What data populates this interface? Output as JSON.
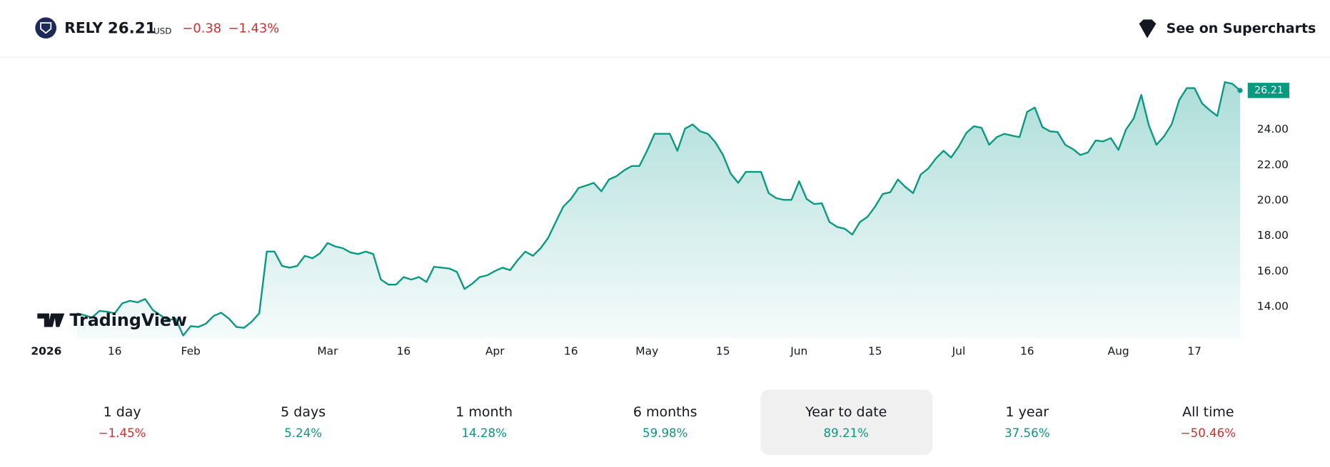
{
  "header": {
    "symbol": "RELY",
    "price": "26.21",
    "currency": "USD",
    "change": "−0.38",
    "change_percent": "−1.43%",
    "change_color": "#d32f2f",
    "button": "See on Supercharts",
    "brand": "TradingView"
  },
  "chart_data": {
    "type": "area",
    "color": "#089981",
    "values": [
      13.62,
      13.52,
      13.38,
      13.76,
      13.71,
      13.62,
      14.19,
      14.33,
      14.24,
      14.43,
      13.81,
      13.52,
      13.23,
      13.33,
      12.37,
      12.9,
      12.85,
      13.04,
      13.47,
      13.66,
      13.33,
      12.85,
      12.8,
      13.14,
      13.62,
      17.11,
      17.11,
      16.3,
      16.2,
      16.3,
      16.87,
      16.73,
      17.01,
      17.59,
      17.4,
      17.3,
      17.06,
      16.97,
      17.11,
      16.97,
      15.53,
      15.24,
      15.24,
      15.67,
      15.53,
      15.67,
      15.39,
      16.25,
      16.2,
      16.15,
      15.96,
      15.0,
      15.29,
      15.67,
      15.77,
      16.01,
      16.2,
      16.06,
      16.63,
      17.11,
      16.87,
      17.3,
      17.88,
      18.78,
      19.65,
      20.08,
      20.7,
      20.84,
      20.99,
      20.51,
      21.18,
      21.37,
      21.7,
      21.94,
      21.94,
      22.8,
      23.76,
      23.76,
      23.76,
      22.8,
      24.05,
      24.29,
      23.9,
      23.76,
      23.28,
      22.56,
      21.51,
      20.99,
      21.61,
      21.61,
      21.61,
      20.41,
      20.12,
      20.03,
      20.03,
      21.08,
      20.08,
      19.79,
      19.84,
      18.78,
      18.5,
      18.4,
      18.07,
      18.78,
      19.07,
      19.65,
      20.36,
      20.46,
      21.18,
      20.75,
      20.41,
      21.46,
      21.8,
      22.37,
      22.8,
      22.42,
      23.04,
      23.81,
      24.19,
      24.1,
      23.14,
      23.57,
      23.76,
      23.66,
      23.57,
      25.0,
      25.24,
      24.14,
      23.9,
      23.86,
      23.14,
      22.9,
      22.56,
      22.71,
      23.38,
      23.33,
      23.52,
      22.85,
      24.0,
      24.62,
      25.96,
      24.24,
      23.14,
      23.62,
      24.29,
      25.67,
      26.34,
      26.34,
      25.48,
      25.1,
      24.77,
      26.68,
      26.58,
      26.21
    ],
    "xlim": [
      -5.4,
      153
    ],
    "xticks": [
      {
        "value": -4,
        "label": "2026"
      },
      {
        "value": 5,
        "label": "16"
      },
      {
        "value": 15,
        "label": "Feb"
      },
      {
        "value": 33,
        "label": "Mar"
      },
      {
        "value": 43,
        "label": "16"
      },
      {
        "value": 55,
        "label": "Apr"
      },
      {
        "value": 65,
        "label": "16"
      },
      {
        "value": 75,
        "label": "May"
      },
      {
        "value": 85,
        "label": "15"
      },
      {
        "value": 95,
        "label": "Jun"
      },
      {
        "value": 105,
        "label": "15"
      },
      {
        "value": 116,
        "label": "Jul"
      },
      {
        "value": 125,
        "label": "16"
      },
      {
        "value": 137,
        "label": "Aug"
      },
      {
        "value": 147,
        "label": "17"
      }
    ],
    "ylim": [
      12.18,
      27.49
    ],
    "yticks": [
      {
        "value": 14,
        "label": "14.00"
      },
      {
        "value": 16,
        "label": "16.00"
      },
      {
        "value": 18,
        "label": "18.00"
      },
      {
        "value": 20,
        "label": "20.00"
      },
      {
        "value": 22,
        "label": "22.00"
      },
      {
        "value": 24,
        "label": "24.00"
      }
    ]
  },
  "periods": {
    "selected": 4,
    "items": [
      {
        "label": "1 day",
        "change": "−1.45%",
        "color": "#d32f2f"
      },
      {
        "label": "5 days",
        "change": "5.24%",
        "color": "#089981"
      },
      {
        "label": "1 month",
        "change": "14.28%",
        "color": "#089981"
      },
      {
        "label": "6 months",
        "change": "59.98%",
        "color": "#089981"
      },
      {
        "label": "Year to date",
        "change": "89.21%",
        "color": "#089981"
      },
      {
        "label": "1 year",
        "change": "37.56%",
        "color": "#089981"
      },
      {
        "label": "All time",
        "change": "−50.46%",
        "color": "#d32f2f"
      }
    ]
  }
}
